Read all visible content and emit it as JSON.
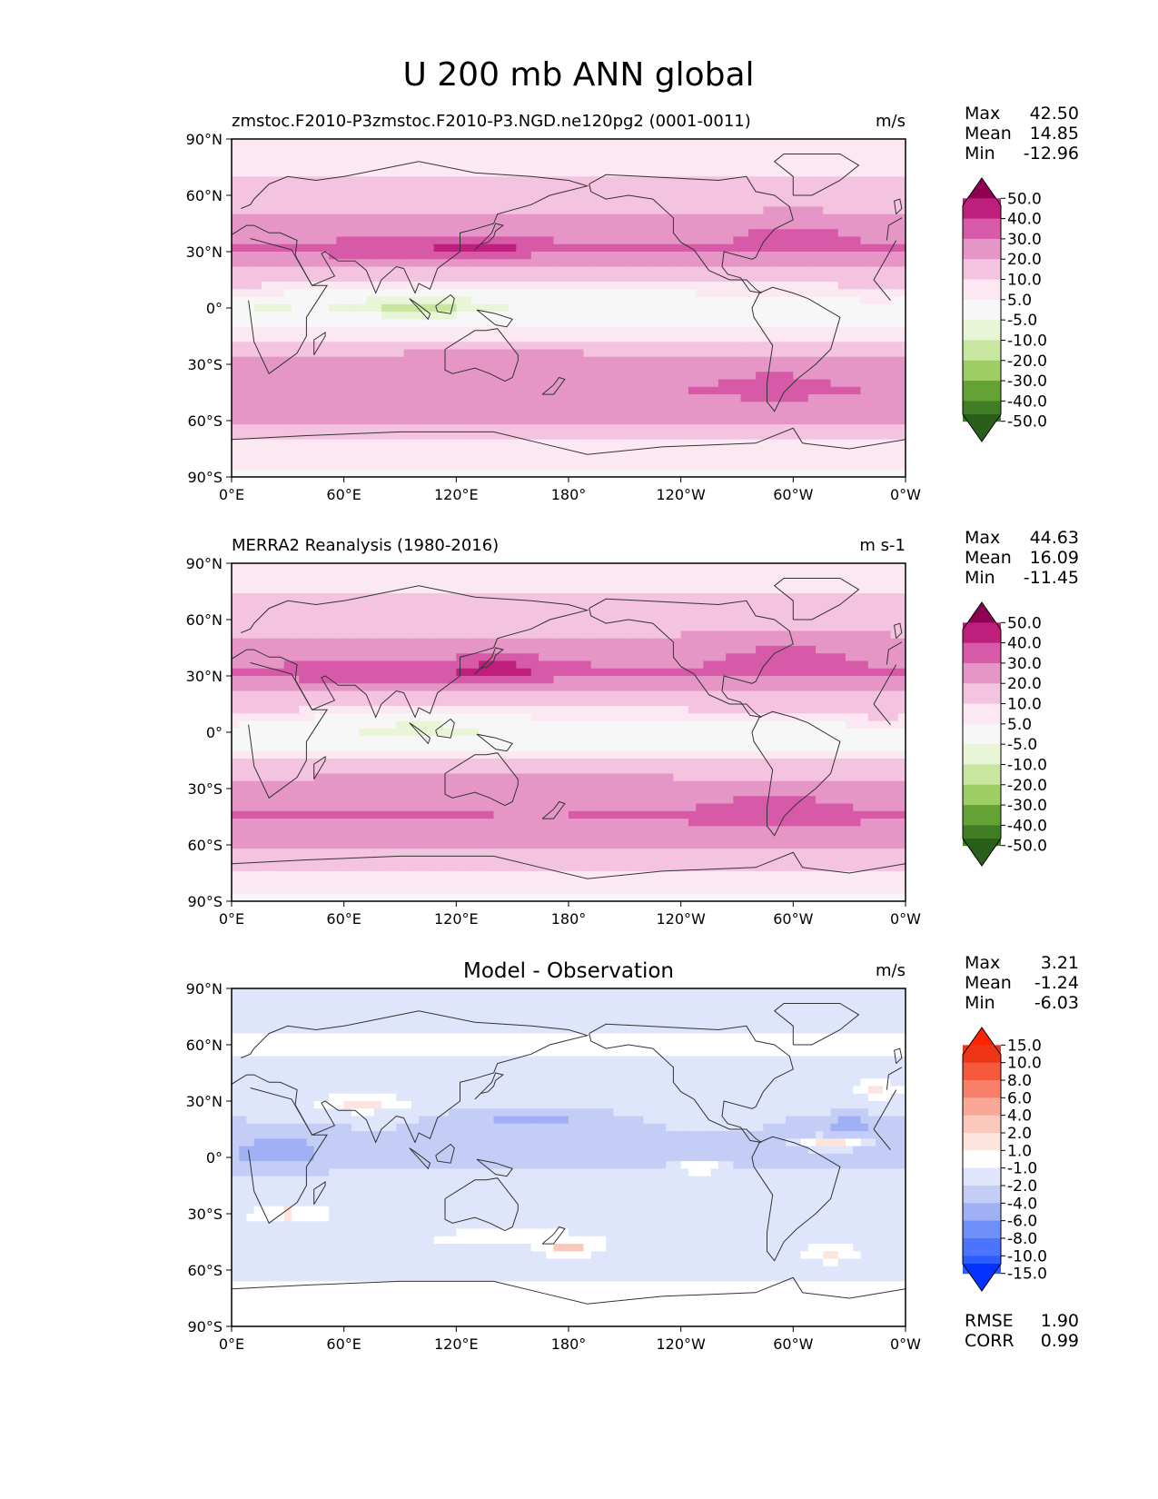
{
  "page_title": "U 200 mb ANN global",
  "colors": {
    "background": "#ffffff",
    "ocean_bg": "#f6f6f4",
    "coastline": "#333333",
    "seq_scale": [
      "#2a5f1b",
      "#3f7e24",
      "#65a236",
      "#9dcd63",
      "#c8e6a0",
      "#e8f5d7",
      "#f7f7f7",
      "#fce8f2",
      "#f4c3df",
      "#e596c6",
      "#d65aa8",
      "#bf1f7c",
      "#8e0152"
    ],
    "diff_scale": [
      "#0433ff",
      "#2a5cff",
      "#4d74ff",
      "#6f8ff8",
      "#9fb0f5",
      "#c3cdf6",
      "#dfe5fa",
      "#ffffff",
      "#fde4dc",
      "#fbc9bb",
      "#f9a897",
      "#f87f69",
      "#f45a3b",
      "#ee3515",
      "#ff2400"
    ]
  },
  "chart_data": [
    {
      "type": "heatmap",
      "panel": "test",
      "title_left": "zmstoc.F2010-P3zmstoc.F2010-P3.NGD.ne120pg2 (0001-0011)",
      "title_center": "",
      "title_right": "m/s",
      "stats": [
        {
          "label": "Max",
          "value": "42.50"
        },
        {
          "label": "Mean",
          "value": "14.85"
        },
        {
          "label": "Min",
          "value": "-12.96"
        }
      ],
      "colorbar_ticks": [
        "50.0",
        "40.0",
        "30.0",
        "20.0",
        "10.0",
        "5.0",
        "-5.0",
        "-10.0",
        "-20.0",
        "-30.0",
        "-40.0",
        "-50.0"
      ],
      "yticks": [
        "90°N",
        "60°N",
        "30°N",
        "0°",
        "30°S",
        "60°S",
        "90°S"
      ],
      "xticks": [
        "0°E",
        "60°E",
        "120°E",
        "180°",
        "120°W",
        "60°W",
        "0°W"
      ],
      "xlim": [
        0,
        360
      ],
      "ylim": [
        -90,
        90
      ],
      "zonal_profile": {
        "lat": [
          90,
          75,
          60,
          50,
          40,
          32,
          25,
          15,
          5,
          0,
          -5,
          -15,
          -25,
          -35,
          -45,
          -55,
          -65,
          -75,
          -90
        ],
        "u": [
          5,
          8,
          14,
          20,
          26,
          30,
          24,
          12,
          2,
          -2,
          0,
          8,
          20,
          26,
          30,
          26,
          14,
          7,
          4
        ]
      },
      "blobs": [
        {
          "lon": 135,
          "lat": 33,
          "rx": 28,
          "ry": 6,
          "amp": 12
        },
        {
          "lon": 90,
          "lat": 30,
          "rx": 55,
          "ry": 7,
          "amp": 6
        },
        {
          "lon": 300,
          "lat": 40,
          "rx": 35,
          "ry": 10,
          "amp": 6
        },
        {
          "lon": 100,
          "lat": 2,
          "rx": 45,
          "ry": 8,
          "amp": -10
        },
        {
          "lon": 15,
          "lat": 0,
          "rx": 20,
          "ry": 6,
          "amp": -5
        },
        {
          "lon": 350,
          "lat": 5,
          "rx": 30,
          "ry": 8,
          "amp": 5
        },
        {
          "lon": 140,
          "lat": -30,
          "rx": 60,
          "ry": 7,
          "amp": 5
        },
        {
          "lon": 290,
          "lat": -40,
          "rx": 30,
          "ry": 8,
          "amp": 5
        },
        {
          "lon": 160,
          "lat": -45,
          "rx": 12,
          "ry": 3,
          "amp": -8
        }
      ]
    },
    {
      "type": "heatmap",
      "panel": "reference",
      "title_left": "MERRA2 Reanalysis (1980-2016)",
      "title_center": "",
      "title_right": "m s-1",
      "stats": [
        {
          "label": "Max",
          "value": "44.63"
        },
        {
          "label": "Mean",
          "value": "16.09"
        },
        {
          "label": "Min",
          "value": "-11.45"
        }
      ],
      "colorbar_ticks": [
        "50.0",
        "40.0",
        "30.0",
        "20.0",
        "10.0",
        "5.0",
        "-5.0",
        "-10.0",
        "-20.0",
        "-30.0",
        "-40.0",
        "-50.0"
      ],
      "yticks": [
        "90°N",
        "60°N",
        "30°N",
        "0°",
        "30°S",
        "60°S",
        "90°S"
      ],
      "xticks": [
        "0°E",
        "60°E",
        "120°E",
        "180°",
        "120°W",
        "60°W",
        "0°W"
      ],
      "xlim": [
        0,
        360
      ],
      "ylim": [
        -90,
        90
      ],
      "zonal_profile": {
        "lat": [
          90,
          75,
          60,
          50,
          40,
          32,
          25,
          15,
          5,
          0,
          -5,
          -15,
          -25,
          -35,
          -45,
          -55,
          -65,
          -75,
          -90
        ],
        "u": [
          5,
          9,
          15,
          21,
          27,
          31,
          25,
          13,
          3,
          -1,
          1,
          9,
          21,
          27,
          31,
          27,
          15,
          8,
          4
        ]
      },
      "blobs": [
        {
          "lon": 145,
          "lat": 34,
          "rx": 30,
          "ry": 6,
          "amp": 13
        },
        {
          "lon": 80,
          "lat": 30,
          "rx": 50,
          "ry": 7,
          "amp": 6
        },
        {
          "lon": 295,
          "lat": 42,
          "rx": 35,
          "ry": 10,
          "amp": 7
        },
        {
          "lon": 100,
          "lat": 3,
          "rx": 45,
          "ry": 8,
          "amp": -8
        },
        {
          "lon": 15,
          "lat": 0,
          "rx": 15,
          "ry": 5,
          "amp": -3
        },
        {
          "lon": 350,
          "lat": 5,
          "rx": 30,
          "ry": 8,
          "amp": 5
        },
        {
          "lon": 140,
          "lat": -30,
          "rx": 60,
          "ry": 7,
          "amp": 5
        },
        {
          "lon": 290,
          "lat": -40,
          "rx": 30,
          "ry": 8,
          "amp": 6
        },
        {
          "lon": 160,
          "lat": -45,
          "rx": 12,
          "ry": 3,
          "amp": -8
        }
      ]
    },
    {
      "type": "heatmap",
      "panel": "difference",
      "title_left": "",
      "title_center": "Model - Observation",
      "title_right": "m/s",
      "stats": [
        {
          "label": "Max",
          "value": "3.21"
        },
        {
          "label": "Mean",
          "value": "-1.24"
        },
        {
          "label": "Min",
          "value": "-6.03"
        }
      ],
      "bottom_stats": [
        {
          "label": "RMSE",
          "value": "1.90"
        },
        {
          "label": "CORR",
          "value": "0.99"
        }
      ],
      "colorbar_ticks": [
        "15.0",
        "10.0",
        "8.0",
        "6.0",
        "4.0",
        "2.0",
        "1.0",
        "-1.0",
        "-2.0",
        "-4.0",
        "-6.0",
        "-8.0",
        "-10.0",
        "-15.0"
      ],
      "yticks": [
        "90°N",
        "60°N",
        "30°N",
        "0°",
        "30°S",
        "60°S",
        "90°S"
      ],
      "xticks": [
        "0°E",
        "60°E",
        "120°E",
        "180°",
        "120°W",
        "60°W",
        "0°W"
      ],
      "xlim": [
        0,
        360
      ],
      "ylim": [
        -90,
        90
      ],
      "zonal_profile": {
        "lat": [
          90,
          75,
          60,
          45,
          30,
          15,
          0,
          -15,
          -30,
          -45,
          -60,
          -75,
          -90
        ],
        "u": [
          -1.5,
          -2,
          -0.5,
          -2,
          -1,
          -2,
          -2.5,
          -1,
          -1.5,
          -1,
          -1.5,
          -0.5,
          0
        ]
      },
      "blobs": [
        {
          "lon": 25,
          "lat": 3,
          "rx": 25,
          "ry": 10,
          "amp": -3
        },
        {
          "lon": 160,
          "lat": 20,
          "rx": 40,
          "ry": 6,
          "amp": -3
        },
        {
          "lon": 330,
          "lat": 18,
          "rx": 25,
          "ry": 5,
          "amp": -3
        },
        {
          "lon": 320,
          "lat": 8,
          "rx": 15,
          "ry": 3,
          "amp": 4
        },
        {
          "lon": 30,
          "lat": -30,
          "rx": 15,
          "ry": 3,
          "amp": 4
        },
        {
          "lon": 70,
          "lat": 28,
          "rx": 15,
          "ry": 3,
          "amp": 3
        },
        {
          "lon": 180,
          "lat": -48,
          "rx": 10,
          "ry": 3,
          "amp": 4.5
        },
        {
          "lon": 150,
          "lat": -42,
          "rx": 20,
          "ry": 3,
          "amp": 3
        },
        {
          "lon": 250,
          "lat": -5,
          "rx": 10,
          "ry": 3,
          "amp": 3
        },
        {
          "lon": 345,
          "lat": 37,
          "rx": 10,
          "ry": 3,
          "amp": 3
        },
        {
          "lon": 90,
          "lat": -70,
          "rx": 25,
          "ry": 2.5,
          "amp": 3
        },
        {
          "lon": 320,
          "lat": -52,
          "rx": 10,
          "ry": 3,
          "amp": 3
        }
      ]
    }
  ]
}
